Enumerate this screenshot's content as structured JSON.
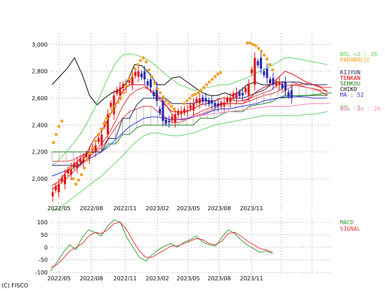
{
  "copyright": "(C) FISCO",
  "colors": {
    "price_up": "#e01010",
    "price_down": "#2020b0",
    "sma_short": "#e03030",
    "sma_long": "#3030e0",
    "kijun": "#202060",
    "tenkan": "#e00000",
    "chikou": "#000000",
    "senkou_line": "#208020",
    "cloud": "#bbbbbb",
    "parabolic": "#f0a020",
    "bollinger_upper": "#60d060",
    "bollinger_lower": "#60d060",
    "bollinger_lower2": "#ff80c0",
    "macd": "#30a030",
    "signal": "#e03030"
  },
  "chart_data": [
    {
      "type": "line",
      "title": "",
      "xlabel": "",
      "ylabel": "",
      "ylim": [
        1750,
        3080
      ],
      "ytick_values": [
        2000,
        2200,
        2400,
        2600,
        2800,
        3000
      ],
      "ytick_labels": [
        "2,000",
        "2,200",
        "2,400",
        "2,600",
        "2,800",
        "3,000"
      ],
      "xtick_labels": [
        "2022/05",
        "2022/08",
        "2022/11",
        "2023/02",
        "2023/05",
        "2023/08",
        "2023/11"
      ],
      "grid": true,
      "legend_labels": [
        {
          "text": "BOL +2 : 26",
          "color": "#60d060"
        },
        {
          "text": "PARABOLIC",
          "color": "#f0a020"
        },
        {
          "text": "KIJYUN",
          "color": "#202060"
        },
        {
          "text": "TENKAN",
          "color": "#e00000"
        },
        {
          "text": "SENKOU",
          "color": "#208020"
        },
        {
          "text": "CHIKO",
          "color": "#000000"
        },
        {
          "text": "MA : 52",
          "color": "#3030e0"
        },
        {
          "text": "BOL -2",
          "color": "#60d060"
        },
        {
          "text": "BOL -2σ : 26",
          "color": "#ff80c0"
        }
      ],
      "series": [
        {
          "id": "price",
          "values": [
            1900,
            1960,
            2030,
            2080,
            2120,
            2150,
            2200,
            2250,
            2330,
            2480,
            2620,
            2680,
            2700,
            2760,
            2800,
            2740,
            2680,
            2580,
            2430,
            2420,
            2480,
            2500,
            2510,
            2560,
            2600,
            2580,
            2560,
            2540,
            2570,
            2600,
            2640,
            2620,
            2700,
            2900,
            2820,
            2750,
            2700,
            2720,
            2660,
            2600
          ]
        },
        {
          "id": "sma_short",
          "values": [
            1920,
            1960,
            2000,
            2050,
            2100,
            2150,
            2200,
            2260,
            2330,
            2430,
            2540,
            2620,
            2660,
            2680,
            2660,
            2620,
            2560,
            2480,
            2440,
            2440,
            2470,
            2500,
            2520,
            2540,
            2560,
            2560,
            2560,
            2560,
            2580,
            2600,
            2620,
            2630,
            2650,
            2690,
            2700,
            2690,
            2680,
            2670,
            2650,
            2620
          ]
        },
        {
          "id": "sma_long",
          "values": [
            2020,
            2040,
            2060,
            2080,
            2110,
            2140,
            2170,
            2200,
            2240,
            2290,
            2340,
            2390,
            2420,
            2450,
            2460,
            2460,
            2450,
            2440,
            2440,
            2450,
            2460,
            2470,
            2490,
            2510,
            2520,
            2520,
            2530,
            2540,
            2550,
            2560,
            2580,
            2590,
            2600,
            2610,
            2610,
            2610,
            2610,
            2600,
            2600,
            2600
          ]
        },
        {
          "id": "chikou",
          "values": [
            2700,
            2760,
            2820,
            2900,
            2780,
            2620,
            2550,
            2600,
            2640,
            2660,
            2720,
            2850,
            2840,
            2780,
            2700,
            2700,
            2750,
            2760,
            2720,
            2680,
            2640,
            2620,
            2620,
            2640,
            2620,
            2650,
            2700,
            2720,
            2700,
            2700
          ]
        },
        {
          "id": "bol_upper",
          "values": [
            2100,
            2140,
            2200,
            2260,
            2330,
            2420,
            2520,
            2640,
            2760,
            2860,
            2920,
            2930,
            2920,
            2900,
            2870,
            2830,
            2780,
            2740,
            2700,
            2680,
            2660,
            2660,
            2680,
            2690,
            2700,
            2700,
            2720,
            2740,
            2760,
            2790,
            2810,
            2840,
            2870,
            2900,
            2900,
            2890,
            2880,
            2870,
            2860,
            2850
          ]
        },
        {
          "id": "bol_lower",
          "values": [
            1760,
            1780,
            1820,
            1860,
            1900,
            1940,
            1980,
            2020,
            2070,
            2120,
            2170,
            2230,
            2280,
            2320,
            2340,
            2340,
            2330,
            2320,
            2320,
            2330,
            2340,
            2360,
            2380,
            2400,
            2410,
            2420,
            2430,
            2440,
            2450,
            2460,
            2470,
            2470,
            2470,
            2470,
            2470,
            2470,
            2480,
            2480,
            2490,
            2500
          ]
        }
      ]
    },
    {
      "type": "line",
      "title": "",
      "ylim": [
        -110,
        120
      ],
      "ytick_values": [
        100,
        50,
        0,
        -50,
        -100
      ],
      "ytick_labels": [
        "100",
        "50",
        "0",
        "-50",
        "-100"
      ],
      "xtick_labels": [
        "2022/05",
        "2022/08",
        "2022/11",
        "2023/02",
        "2023/05",
        "2023/08",
        "2023/11"
      ],
      "grid": true,
      "series": [
        {
          "name": "MACD",
          "color": "#30a030",
          "values": [
            -95,
            -60,
            -20,
            10,
            -10,
            40,
            70,
            60,
            45,
            85,
            110,
            100,
            40,
            0,
            -40,
            -55,
            -30,
            -10,
            5,
            15,
            0,
            20,
            30,
            45,
            20,
            10,
            5,
            40,
            70,
            55,
            30,
            10,
            -5,
            -20,
            -15,
            -25
          ]
        },
        {
          "name": "SIGNAL",
          "color": "#e03030",
          "values": [
            -80,
            -70,
            -45,
            -15,
            0,
            15,
            45,
            60,
            55,
            70,
            95,
            100,
            70,
            25,
            -15,
            -40,
            -40,
            -25,
            -10,
            5,
            5,
            15,
            25,
            35,
            30,
            15,
            10,
            25,
            55,
            60,
            45,
            25,
            10,
            -5,
            -10,
            -20
          ]
        }
      ]
    }
  ]
}
